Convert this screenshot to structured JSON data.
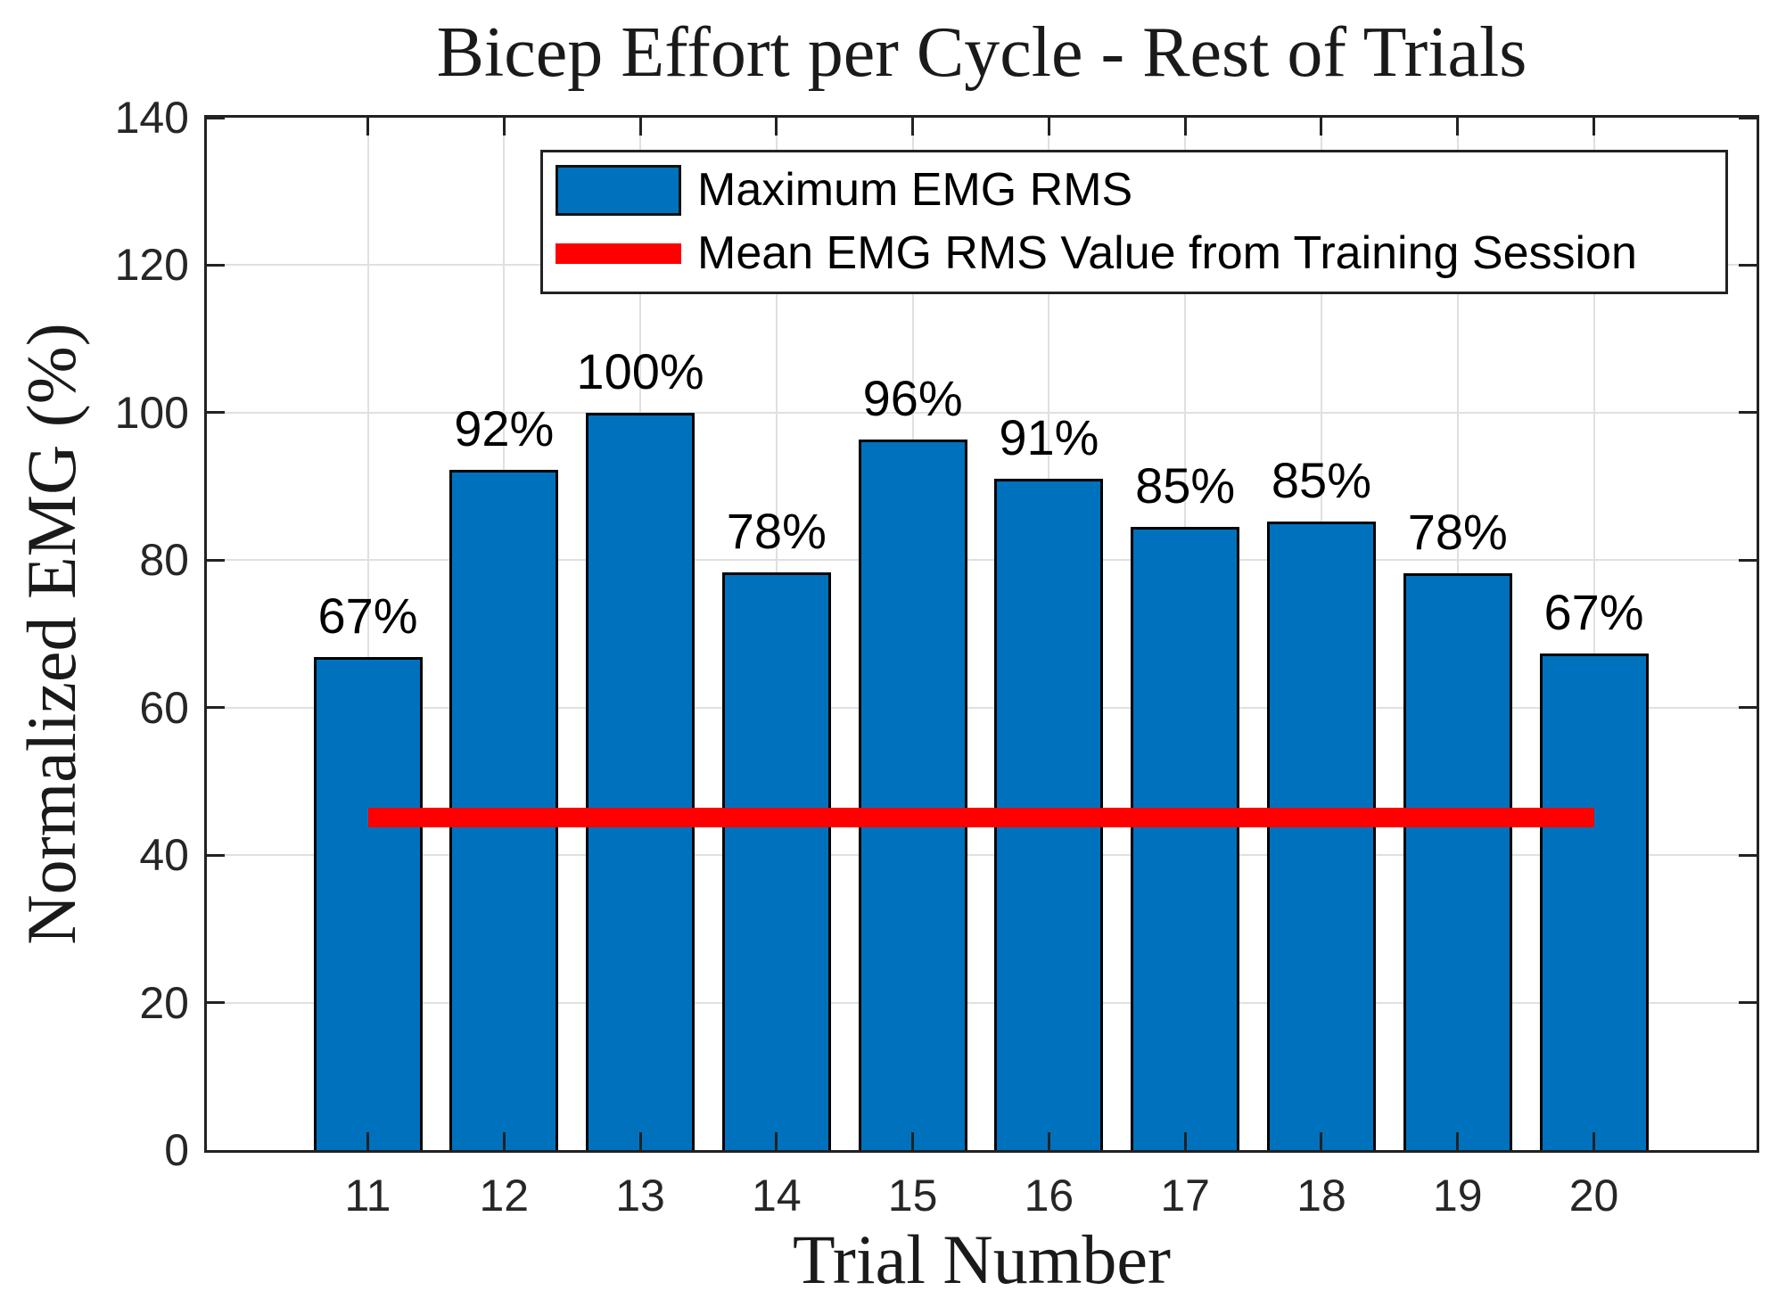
{
  "chart_data": {
    "type": "bar",
    "title": "Bicep Effort per Cycle - Rest of Trials",
    "xlabel": "Trial Number",
    "ylabel": "Normalized EMG (%)",
    "categories": [
      11,
      12,
      13,
      14,
      15,
      16,
      17,
      18,
      19,
      20
    ],
    "series": [
      {
        "name": "Maximum EMG RMS",
        "values": [
          66.8,
          92.3,
          100.0,
          78.3,
          96.3,
          91.0,
          84.5,
          85.2,
          78.2,
          67.4
        ]
      }
    ],
    "bar_labels": [
      "67%",
      "92%",
      "100%",
      "78%",
      "96%",
      "91%",
      "85%",
      "85%",
      "78%",
      "67%"
    ],
    "mean_line": {
      "name": "Mean EMG RMS Value from Training Session",
      "value": 45.1,
      "x_start": 11,
      "x_end": 20
    },
    "ylim": [
      0,
      140
    ],
    "yticks": [
      0,
      20,
      40,
      60,
      80,
      100,
      120,
      140
    ],
    "grid": true,
    "legend_position": "top-inside",
    "legend": [
      {
        "label": "Maximum EMG RMS",
        "swatch": "bar"
      },
      {
        "label": "Mean EMG RMS Value from Training Session",
        "swatch": "line"
      }
    ],
    "colors": {
      "bar_fill": "#0072BD",
      "bar_edge": "#000000",
      "mean_line": "#FF0000",
      "grid": "#E0E0E0",
      "axis": "#222222"
    }
  }
}
